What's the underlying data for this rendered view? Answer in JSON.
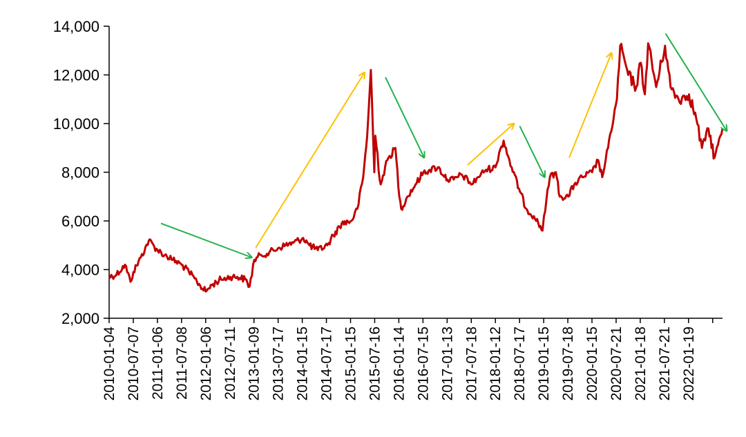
{
  "chart_data": {
    "type": "line",
    "title": "",
    "xlabel": "",
    "ylabel": "",
    "ylim": [
      2000,
      14000
    ],
    "y_ticks": [
      {
        "value": 2000,
        "label": "2,000"
      },
      {
        "value": 4000,
        "label": "4,000"
      },
      {
        "value": 6000,
        "label": "6,000"
      },
      {
        "value": 8000,
        "label": "8,000"
      },
      {
        "value": 10000,
        "label": "10,000"
      },
      {
        "value": 12000,
        "label": "12,000"
      },
      {
        "value": 14000,
        "label": "14,000"
      }
    ],
    "x_range": [
      "2010-01-04",
      "2022-09-30"
    ],
    "x_tick_labels": [
      "2010-01-04",
      "2010-07-07",
      "2011-01-06",
      "2011-07-08",
      "2012-01-06",
      "2012-07-11",
      "2013-01-09",
      "2013-07-17",
      "2014-01-15",
      "2014-07-17",
      "2015-01-15",
      "2015-07-16",
      "2016-01-14",
      "2016-07-15",
      "2017-01-13",
      "2017-07-18",
      "2018-01-12",
      "2018-07-17",
      "2019-01-15",
      "2019-07-18",
      "2020-01-15",
      "2020-07-21",
      "2021-01-18",
      "2021-07-21",
      "2022-01-19"
    ],
    "grid": false,
    "legend": "none",
    "series": [
      {
        "color": "#C00000",
        "x": [
          "2010-01-04",
          "2010-03-01",
          "2010-05-04",
          "2010-06-15",
          "2010-07-07",
          "2010-09-01",
          "2010-11-01",
          "2011-01-06",
          "2011-03-01",
          "2011-05-02",
          "2011-07-08",
          "2011-09-01",
          "2011-11-01",
          "2012-01-06",
          "2012-03-01",
          "2012-05-02",
          "2012-07-11",
          "2012-09-03",
          "2012-11-01",
          "2012-12-04",
          "2013-01-09",
          "2013-03-01",
          "2013-05-02",
          "2013-07-17",
          "2013-09-02",
          "2013-11-01",
          "2014-01-15",
          "2014-03-03",
          "2014-05-05",
          "2014-07-17",
          "2014-09-01",
          "2014-11-03",
          "2015-01-15",
          "2015-03-02",
          "2015-04-15",
          "2015-05-15",
          "2015-06-12",
          "2015-07-08",
          "2015-07-16",
          "2015-08-26",
          "2015-10-15",
          "2015-12-15",
          "2016-01-14",
          "2016-01-28",
          "2016-03-15",
          "2016-05-16",
          "2016-07-15",
          "2016-09-01",
          "2016-11-01",
          "2017-01-13",
          "2017-03-01",
          "2017-05-02",
          "2017-07-18",
          "2017-09-01",
          "2017-11-01",
          "2018-01-12",
          "2018-02-09",
          "2018-03-15",
          "2018-05-15",
          "2018-07-17",
          "2018-09-03",
          "2018-10-30",
          "2018-12-03",
          "2019-01-04",
          "2019-01-15",
          "2019-03-01",
          "2019-04-15",
          "2019-05-15",
          "2019-07-18",
          "2019-09-02",
          "2019-11-01",
          "2020-01-15",
          "2020-03-01",
          "2020-04-01",
          "2020-05-15",
          "2020-07-21",
          "2020-08-15",
          "2020-10-15",
          "2020-12-15",
          "2021-01-18",
          "2021-02-18",
          "2021-03-15",
          "2021-05-15",
          "2021-07-21",
          "2021-09-01",
          "2021-11-01",
          "2022-01-19",
          "2022-03-15",
          "2022-04-27",
          "2022-06-15",
          "2022-08-01",
          "2022-09-30"
        ],
        "values": [
          3700,
          3800,
          4200,
          3500,
          3900,
          4500,
          5200,
          4800,
          4600,
          4400,
          4200,
          3900,
          3500,
          3100,
          3400,
          3600,
          3700,
          3700,
          3600,
          3300,
          4400,
          4600,
          4700,
          4900,
          5000,
          5100,
          5300,
          5000,
          4800,
          5000,
          5400,
          5900,
          6000,
          6500,
          7800,
          9500,
          12200,
          8000,
          9500,
          7500,
          8500,
          9000,
          7000,
          6500,
          7000,
          7500,
          8000,
          8100,
          8200,
          7700,
          7700,
          7900,
          7500,
          7800,
          8100,
          8200,
          8800,
          9300,
          8200,
          7200,
          6500,
          6200,
          5900,
          5600,
          6200,
          7800,
          8000,
          7000,
          7000,
          7500,
          7800,
          8000,
          8500,
          7800,
          9000,
          11000,
          13200,
          12000,
          11500,
          12500,
          11200,
          13300,
          11500,
          13200,
          11500,
          11000,
          11200,
          10200,
          9000,
          9800,
          8600,
          9800
        ]
      }
    ],
    "annotations": [
      {
        "name": "arrow-down-2011",
        "color": "#22B14C",
        "from": [
          "2011-02-01",
          5900
        ],
        "to": [
          "2012-12-20",
          4500
        ]
      },
      {
        "name": "arrow-up-2013",
        "color": "#FFC000",
        "from": [
          "2013-01-20",
          4900
        ],
        "to": [
          "2015-04-25",
          12100
        ]
      },
      {
        "name": "arrow-down-2015",
        "color": "#22B14C",
        "from": [
          "2015-10-01",
          11900
        ],
        "to": [
          "2016-07-20",
          8600
        ]
      },
      {
        "name": "arrow-up-2017",
        "color": "#FFC000",
        "from": [
          "2017-06-15",
          8300
        ],
        "to": [
          "2018-06-01",
          10000
        ]
      },
      {
        "name": "arrow-down-2018",
        "color": "#22B14C",
        "from": [
          "2018-07-15",
          9900
        ],
        "to": [
          "2019-01-20",
          7800
        ]
      },
      {
        "name": "arrow-up-2019",
        "color": "#FFC000",
        "from": [
          "2019-07-25",
          8600
        ],
        "to": [
          "2020-06-10",
          12900
        ]
      },
      {
        "name": "arrow-down-2021",
        "color": "#22B14C",
        "from": [
          "2021-07-25",
          13700
        ],
        "to": [
          "2022-11-01",
          9700
        ]
      }
    ]
  }
}
